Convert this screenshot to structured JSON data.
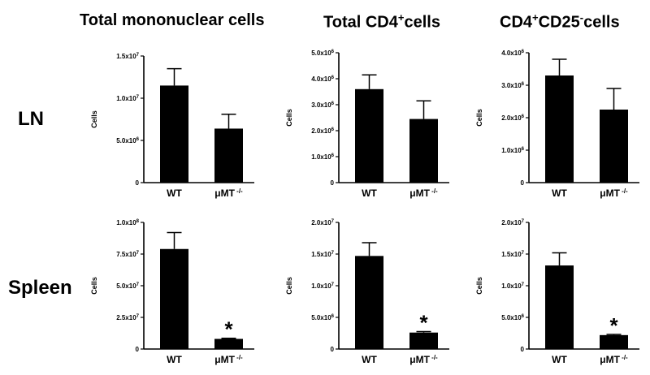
{
  "column_titles": [
    {
      "main": "Total mononuclear cells",
      "sup": "",
      "tail": ""
    },
    {
      "main": "Total CD4",
      "sup": "+",
      "tail": "cells"
    },
    {
      "main": "CD4",
      "sup": "+",
      "mid": "CD25",
      "sup2": "-",
      "tail": "cells"
    }
  ],
  "row_labels": [
    "LN",
    "Spleen"
  ],
  "colors": {
    "bar": "#000000",
    "axis": "#000000"
  },
  "chart_data": [
    {
      "type": "bar",
      "panel": "LN - Total mononuclear cells",
      "categories": [
        "WT",
        "μMT"
      ],
      "cat_sup": [
        "",
        "-/-"
      ],
      "values": [
        11500000,
        6400000
      ],
      "errors": [
        2000000,
        1700000
      ],
      "ylabel": "Cells",
      "ylim": [
        0,
        15000000
      ],
      "yticks": [
        0,
        5000000,
        10000000,
        15000000
      ],
      "ytick_labels": [
        "0",
        "5.0x10^6",
        "1.0x10^7",
        "1.5x10^7"
      ],
      "annotation": [
        "",
        ""
      ]
    },
    {
      "type": "bar",
      "panel": "LN - Total CD4+ cells",
      "categories": [
        "WT",
        "μMT"
      ],
      "cat_sup": [
        "",
        "-/-"
      ],
      "values": [
        3600000,
        2450000
      ],
      "errors": [
        550000,
        700000
      ],
      "ylabel": "Cells",
      "ylim": [
        0,
        5000000
      ],
      "yticks": [
        0,
        1000000,
        2000000,
        3000000,
        4000000,
        5000000
      ],
      "ytick_labels": [
        "0",
        "1.0x10^6",
        "2.0x10^6",
        "3.0x10^6",
        "4.0x10^6",
        "5.0x10^6"
      ],
      "annotation": [
        "",
        ""
      ]
    },
    {
      "type": "bar",
      "panel": "LN - CD4+CD25- cells",
      "categories": [
        "WT",
        "μMT"
      ],
      "cat_sup": [
        "",
        "-/-"
      ],
      "values": [
        3300000,
        2250000
      ],
      "errors": [
        500000,
        650000
      ],
      "ylabel": "Cells",
      "ylim": [
        0,
        4000000
      ],
      "yticks": [
        0,
        1000000,
        2000000,
        3000000,
        4000000
      ],
      "ytick_labels": [
        "0",
        "1.0x10^6",
        "2.0x10^6",
        "3.0x10^6",
        "4.0x10^6"
      ],
      "annotation": [
        "",
        ""
      ]
    },
    {
      "type": "bar",
      "panel": "Spleen - Total mononuclear cells",
      "categories": [
        "WT",
        "μMT"
      ],
      "cat_sup": [
        "",
        "-/-"
      ],
      "values": [
        79000000,
        8000000
      ],
      "errors": [
        13000000,
        500000
      ],
      "ylabel": "Cells",
      "ylim": [
        0,
        100000000
      ],
      "yticks": [
        0,
        25000000,
        50000000,
        75000000,
        100000000
      ],
      "ytick_labels": [
        "0",
        "2.5x10^7",
        "5.0x10^7",
        "7.5x10^7",
        "1.0x10^8"
      ],
      "annotation": [
        "",
        "*"
      ]
    },
    {
      "type": "bar",
      "panel": "Spleen - Total CD4+ cells",
      "categories": [
        "WT",
        "μMT"
      ],
      "cat_sup": [
        "",
        "-/-"
      ],
      "values": [
        14700000,
        2600000
      ],
      "errors": [
        2100000,
        150000
      ],
      "ylabel": "Cells",
      "ylim": [
        0,
        20000000
      ],
      "yticks": [
        0,
        5000000,
        10000000,
        15000000,
        20000000
      ],
      "ytick_labels": [
        "0",
        "5.0x10^6",
        "1.0x10^7",
        "1.5x10^7",
        "2.0x10^7"
      ],
      "annotation": [
        "",
        "*"
      ]
    },
    {
      "type": "bar",
      "panel": "Spleen - CD4+CD25- cells",
      "categories": [
        "WT",
        "μMT"
      ],
      "cat_sup": [
        "",
        "-/-"
      ],
      "values": [
        13200000,
        2200000
      ],
      "errors": [
        2000000,
        100000
      ],
      "ylabel": "Cells",
      "ylim": [
        0,
        20000000
      ],
      "yticks": [
        0,
        5000000,
        10000000,
        15000000,
        20000000
      ],
      "ytick_labels": [
        "0",
        "5.0x10^6",
        "1.0x10^7",
        "1.5x10^7",
        "2.0x10^7"
      ],
      "annotation": [
        "",
        "*"
      ]
    }
  ]
}
